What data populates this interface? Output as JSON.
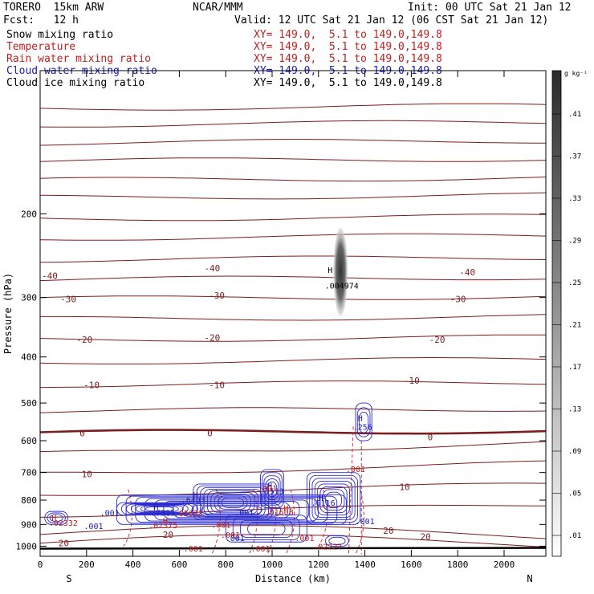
{
  "header": {
    "model": "TORERO  15km ARW",
    "org": "NCAR/MMM",
    "init": "Init: 00 UTC Sat 21 Jan 12",
    "fcst": "Fcst:   12 h",
    "valid": "Valid: 12 UTC Sat 21 Jan 12 (06 CST Sat 21 Jan 12)",
    "fields": [
      {
        "name": "Snow mixing ratio",
        "xy": "XY= 149.0,  5.1 to 149.0,149.8",
        "color": "#000000"
      },
      {
        "name": "Temperature",
        "xy": "XY= 149.0,  5.1 to 149.0,149.8",
        "color": "#c02020"
      },
      {
        "name": "Rain water mixing ratio",
        "xy": "XY= 149.0,  5.1 to 149.0,149.8",
        "color": "#c02020"
      },
      {
        "name": "Cloud water mixing ratio",
        "xy": "XY= 149.0,  5.1 to 149.0,149.8",
        "color": "#2020b0"
      },
      {
        "name": "Cloud ice mixing ratio",
        "xy": "XY= 149.0,  5.1 to 149.0,149.8",
        "color": "#000000"
      }
    ]
  },
  "chart_data": {
    "type": "cross-section",
    "xlabel": "Distance (km)",
    "ylabel": "Pressure (hPa)",
    "x_ticks": [
      0,
      200,
      400,
      600,
      800,
      1000,
      1200,
      1400,
      1600,
      1800,
      2000
    ],
    "y_ticks": [
      200,
      300,
      400,
      500,
      600,
      700,
      800,
      900,
      1000
    ],
    "xlim": [
      0,
      2180
    ],
    "ylim": [
      1050,
      100
    ],
    "y_scale": "log-pressure",
    "left_end_label": "S",
    "right_end_label": "N",
    "colorbar": {
      "unit": "g kg⁻¹",
      "ticks": [
        ".41",
        ".37",
        ".33",
        ".29",
        ".25",
        ".21",
        ".17",
        ".13",
        ".09",
        ".05",
        ".01"
      ],
      "min": 0.01,
      "max": 0.45
    },
    "isotherm_labels": [
      {
        "text": "-40",
        "x": 0,
        "y": 270
      },
      {
        "text": "-40",
        "x": 700,
        "y": 260
      },
      {
        "text": "-40",
        "x": 1800,
        "y": 265
      },
      {
        "text": "-30",
        "x": 80,
        "y": 302
      },
      {
        "text": "-30",
        "x": 720,
        "y": 297
      },
      {
        "text": "-30",
        "x": 1760,
        "y": 302
      },
      {
        "text": "-20",
        "x": 150,
        "y": 368
      },
      {
        "text": "-20",
        "x": 700,
        "y": 364
      },
      {
        "text": "-20",
        "x": 1670,
        "y": 368
      },
      {
        "text": "-10",
        "x": 180,
        "y": 458
      },
      {
        "text": "-10",
        "x": 720,
        "y": 458
      },
      {
        "text": "-10",
        "x": 1560,
        "y": 448
      },
      {
        "text": "0",
        "x": 140,
        "y": 578
      },
      {
        "text": "0",
        "x": 690,
        "y": 578
      },
      {
        "text": "0",
        "x": 1640,
        "y": 590
      },
      {
        "text": "10",
        "x": 160,
        "y": 705
      },
      {
        "text": "10",
        "x": 1530,
        "y": 750
      },
      {
        "text": "20",
        "x": 510,
        "y": 945
      },
      {
        "text": "20",
        "x": 1460,
        "y": 928
      },
      {
        "text": "20",
        "x": 1620,
        "y": 955
      },
      {
        "text": "20",
        "x": 60,
        "y": 985
      }
    ],
    "annotations": [
      {
        "text": "H",
        "x": 1250,
        "y": 262,
        "color": "#000000"
      },
      {
        "text": ".004974",
        "x": 1300,
        "y": 283,
        "color": "#000000"
      },
      {
        "text": "H",
        "x": 1380,
        "y": 537,
        "color": "#2020b0"
      },
      {
        "text": ".256",
        "x": 1390,
        "y": 561,
        "color": "#2020b0"
      },
      {
        "text": ".001",
        "x": 1360,
        "y": 688,
        "color": "#c02020"
      },
      {
        "text": "H",
        "x": 990,
        "y": 745,
        "color": "#2020b0"
      },
      {
        "text": ".513",
        "x": 1010,
        "y": 765,
        "color": "#2020b0"
      },
      {
        "text": ".001",
        "x": 980,
        "y": 755,
        "color": "#c02020"
      },
      {
        "text": "H",
        "x": 670,
        "y": 778,
        "color": "#2020b0"
      },
      {
        "text": ".6403",
        "x": 660,
        "y": 798,
        "color": "#2020b0"
      },
      {
        "text": "H",
        "x": 1210,
        "y": 790,
        "color": "#2020b0"
      },
      {
        "text": ".6116",
        "x": 1220,
        "y": 810,
        "color": "#2020b0"
      },
      {
        "text": "H",
        "x": 1060,
        "y": 830,
        "color": "#c02020"
      },
      {
        "text": ".01608",
        "x": 1030,
        "y": 847,
        "color": "#c02020"
      },
      {
        "text": "H",
        "x": 500,
        "y": 825,
        "color": "#2020b0"
      },
      {
        "text": ".7315",
        "x": 530,
        "y": 850,
        "color": "#2020b0"
      },
      {
        "text": ".001",
        "x": 300,
        "y": 850,
        "color": "#2020b0"
      },
      {
        "text": ".05023",
        "x": 640,
        "y": 852,
        "color": "#c02020"
      },
      {
        "text": ".001",
        "x": 880,
        "y": 850,
        "color": "#2020b0"
      },
      {
        "text": "H",
        "x": 540,
        "y": 882,
        "color": "#c02020"
      },
      {
        "text": ".02375",
        "x": 530,
        "y": 902,
        "color": "#c02020"
      },
      {
        "text": "H",
        "x": 60,
        "y": 870,
        "color": "#c02020"
      },
      {
        "text": ".02332",
        "x": 100,
        "y": 892,
        "color": "#c02020"
      },
      {
        "text": ".001",
        "x": 230,
        "y": 905,
        "color": "#2020b0"
      },
      {
        "text": ".001",
        "x": 780,
        "y": 900,
        "color": "#c02020"
      },
      {
        "text": ".001",
        "x": 1400,
        "y": 885,
        "color": "#2020b0"
      },
      {
        "text": ".001",
        "x": 820,
        "y": 945,
        "color": "#c02020"
      },
      {
        "text": ".001",
        "x": 840,
        "y": 960,
        "color": "#2020b0"
      },
      {
        "text": ".001",
        "x": 1140,
        "y": 960,
        "color": "#c02020"
      },
      {
        "text": ".02227",
        "x": 1240,
        "y": 1000,
        "color": "#c02020"
      },
      {
        "text": ".001",
        "x": 660,
        "y": 1010,
        "color": "#c02020"
      },
      {
        "text": ".001",
        "x": 950,
        "y": 1010,
        "color": "#c02020"
      }
    ]
  }
}
